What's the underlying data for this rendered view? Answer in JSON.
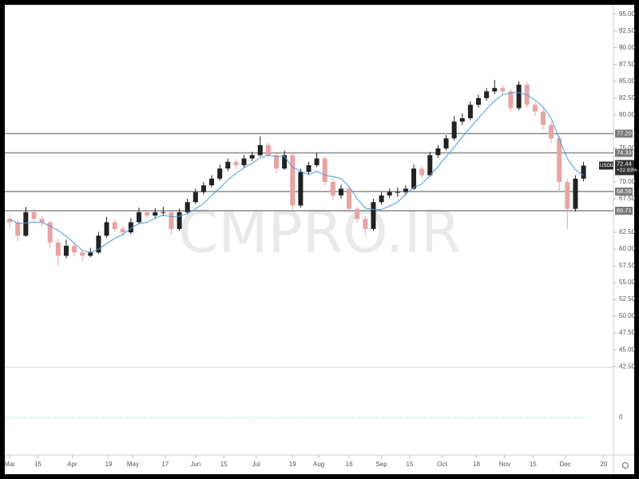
{
  "chart_data": {
    "type": "candlestick",
    "symbol": "USOIL",
    "change": "+22.93%",
    "last_price": 72.44,
    "watermark": "CMPRO.IR",
    "up_color": "#222222",
    "down_color": "#e8a4a4",
    "ma_color": "#4a9be0",
    "level_color": "#8a8a8a",
    "xlim": [
      -2.4,
      298.8
    ],
    "ylim": [
      42.4,
      96.4
    ],
    "xticks": [
      {
        "value": 0,
        "label": "Mar"
      },
      {
        "value": 14,
        "label": "15"
      },
      {
        "value": 31,
        "label": "Apr"
      },
      {
        "value": 49,
        "label": "19"
      },
      {
        "value": 61,
        "label": "May"
      },
      {
        "value": 77,
        "label": "17"
      },
      {
        "value": 92,
        "label": "Jun"
      },
      {
        "value": 106,
        "label": "15"
      },
      {
        "value": 122,
        "label": "Jul"
      },
      {
        "value": 140,
        "label": "19"
      },
      {
        "value": 153,
        "label": "Aug"
      },
      {
        "value": 168,
        "label": "16"
      },
      {
        "value": 184,
        "label": "Sep"
      },
      {
        "value": 198,
        "label": "15"
      },
      {
        "value": 214,
        "label": "Oct"
      },
      {
        "value": 231,
        "label": "18"
      },
      {
        "value": 245,
        "label": "Nov"
      },
      {
        "value": 259,
        "label": "15"
      },
      {
        "value": 275,
        "label": "Dec"
      },
      {
        "value": 294,
        "label": "20"
      }
    ],
    "yticks": [
      {
        "value": 95,
        "label": "95.00"
      },
      {
        "value": 92.5,
        "label": "92.50"
      },
      {
        "value": 90,
        "label": "90.00"
      },
      {
        "value": 87.5,
        "label": "87.50"
      },
      {
        "value": 85,
        "label": "85.00"
      },
      {
        "value": 82.5,
        "label": "82.50"
      },
      {
        "value": 80,
        "label": "80.00"
      },
      {
        "value": 75,
        "label": "75.00"
      },
      {
        "value": 70,
        "label": "70.00"
      },
      {
        "value": 67.5,
        "label": "67.50"
      },
      {
        "value": 62.5,
        "label": "62.50"
      },
      {
        "value": 60,
        "label": "60.00"
      },
      {
        "value": 57.5,
        "label": "57.50"
      },
      {
        "value": 55,
        "label": "55.00"
      },
      {
        "value": 52.5,
        "label": "52.50"
      },
      {
        "value": 50,
        "label": "50.00"
      },
      {
        "value": 47.5,
        "label": "47.50"
      },
      {
        "value": 45,
        "label": "45.00"
      },
      {
        "value": 42.5,
        "label": "42.50"
      }
    ],
    "indicator_ticks": [
      0
    ],
    "levels": [
      {
        "value": 77.2,
        "label": "77.20"
      },
      {
        "value": 74.33,
        "label": "74.33"
      },
      {
        "value": 68.58,
        "label": "68.58"
      },
      {
        "value": 65.71,
        "label": "65.71"
      }
    ],
    "x": [
      0,
      4,
      8,
      12,
      16,
      20,
      24,
      28,
      32,
      36,
      40,
      44,
      48,
      52,
      56,
      60,
      64,
      68,
      72,
      76,
      80,
      84,
      88,
      92,
      96,
      100,
      104,
      108,
      112,
      116,
      120,
      124,
      128,
      132,
      136,
      140,
      144,
      148,
      152,
      156,
      160,
      164,
      168,
      172,
      176,
      180,
      184,
      188,
      192,
      196,
      200,
      204,
      208,
      212,
      216,
      220,
      224,
      228,
      232,
      236,
      240,
      244,
      248,
      252,
      256,
      260,
      264,
      268,
      272,
      276,
      280,
      284
    ],
    "ohlc": [
      [
        64.5,
        65.2,
        63.2,
        64
      ],
      [
        64,
        64.4,
        61.2,
        62
      ],
      [
        62,
        66.3,
        61.8,
        65.5
      ],
      [
        65.5,
        66,
        64,
        64.5
      ],
      [
        64.5,
        65,
        63.3,
        64
      ],
      [
        64,
        64.3,
        60.2,
        61
      ],
      [
        61,
        61.5,
        57.5,
        59
      ],
      [
        59,
        61.4,
        58.6,
        60.5
      ],
      [
        60.5,
        61,
        58.9,
        59.5
      ],
      [
        59.5,
        59.9,
        58.2,
        59
      ],
      [
        59,
        60.2,
        58.8,
        59.5
      ],
      [
        59.5,
        62.6,
        59.3,
        62
      ],
      [
        62,
        64.8,
        61.7,
        64
      ],
      [
        64,
        64.4,
        62.6,
        63
      ],
      [
        63,
        63.5,
        61.8,
        62.5
      ],
      [
        62.5,
        64.6,
        62.2,
        64
      ],
      [
        64,
        66.2,
        63.8,
        65.5
      ],
      [
        65.5,
        66,
        64.6,
        65
      ],
      [
        65,
        66.1,
        64.7,
        65.5
      ],
      [
        65.5,
        66.3,
        64.9,
        65.5
      ],
      [
        65.5,
        65.8,
        62.2,
        63
      ],
      [
        63,
        66,
        62.7,
        65.5
      ],
      [
        65.5,
        67.5,
        65.2,
        67
      ],
      [
        67,
        69,
        66.7,
        68.5
      ],
      [
        68.5,
        70,
        68.1,
        69.5
      ],
      [
        69.5,
        71,
        69.2,
        70.5
      ],
      [
        70.5,
        72.6,
        70.2,
        72
      ],
      [
        72,
        73.5,
        71.6,
        73
      ],
      [
        73,
        73.4,
        71.9,
        72.5
      ],
      [
        72.5,
        74,
        72.1,
        73.5
      ],
      [
        73.5,
        74.5,
        73.1,
        74
      ],
      [
        74,
        76.8,
        73.8,
        75.5
      ],
      [
        75.5,
        75.9,
        73.5,
        74
      ],
      [
        74,
        74.3,
        71.3,
        72
      ],
      [
        72,
        74.7,
        71.8,
        74
      ],
      [
        74,
        74.2,
        65.8,
        66.5
      ],
      [
        66.5,
        72,
        66.2,
        71.5
      ],
      [
        71.5,
        73,
        71.2,
        72.5
      ],
      [
        72.5,
        74.4,
        72.2,
        73.5
      ],
      [
        73.5,
        73.8,
        69.4,
        70
      ],
      [
        70,
        70.4,
        67.3,
        68
      ],
      [
        68,
        69.6,
        67.5,
        69
      ],
      [
        69,
        69.3,
        65.4,
        66
      ],
      [
        66,
        66.4,
        63.9,
        64.5
      ],
      [
        64.5,
        65,
        62,
        63
      ],
      [
        63,
        67.5,
        62.7,
        67
      ],
      [
        67,
        68.5,
        66.6,
        68
      ],
      [
        68,
        69,
        67.6,
        68.5
      ],
      [
        68.5,
        69.2,
        67.8,
        68.5
      ],
      [
        68.5,
        69.5,
        68,
        69
      ],
      [
        69,
        72.6,
        68.8,
        72
      ],
      [
        72,
        72.4,
        70.5,
        71
      ],
      [
        71,
        74.5,
        70.8,
        74
      ],
      [
        74,
        75.5,
        73.6,
        75
      ],
      [
        75,
        77,
        74.7,
        76.5
      ],
      [
        76.5,
        79.8,
        76.2,
        79
      ],
      [
        79,
        80.2,
        78.5,
        79.5
      ],
      [
        79.5,
        82,
        79.2,
        81.5
      ],
      [
        81.5,
        83,
        81.1,
        82.5
      ],
      [
        82.5,
        84,
        82.1,
        83.5
      ],
      [
        83.5,
        85.2,
        83.1,
        84
      ],
      [
        84,
        84.5,
        82.9,
        83.5
      ],
      [
        83.5,
        83.8,
        80.5,
        81
      ],
      [
        81,
        85,
        80.7,
        84.5
      ],
      [
        84.5,
        84.9,
        81,
        81.5
      ],
      [
        81.5,
        82,
        79.8,
        80.5
      ],
      [
        80.5,
        81,
        77.8,
        78.5
      ],
      [
        78.5,
        79,
        75.8,
        76.5
      ],
      [
        76.5,
        76.9,
        68.5,
        70
      ],
      [
        70,
        70.5,
        63,
        66
      ],
      [
        66,
        71,
        65.6,
        70.5
      ],
      [
        70.5,
        73,
        70.1,
        72.44
      ]
    ],
    "ma": [
      64.5,
      63.8,
      63.9,
      64,
      64,
      63.4,
      62.8,
      61.9,
      60.9,
      59.8,
      59.5,
      60,
      60.8,
      61.6,
      62.2,
      63.1,
      63.8,
      64,
      64.6,
      65.1,
      64.8,
      64.9,
      65.3,
      66,
      66.8,
      68,
      69.1,
      70.3,
      71.3,
      72.1,
      72.8,
      73.6,
      74,
      73.8,
      73.8,
      72.2,
      71.6,
      71.1,
      71.6,
      71,
      70.8,
      70.5,
      69.3,
      67.5,
      66.1,
      65.9,
      65.9,
      66.4,
      67,
      68.2,
      69.2,
      69.7,
      71,
      72.3,
      73.8,
      75.2,
      76.7,
      78.1,
      79.5,
      80.9,
      82.1,
      83,
      83.3,
      83.3,
      83,
      82.2,
      81.2,
      79.5,
      76.4,
      73.5,
      71.8,
      71
    ]
  }
}
